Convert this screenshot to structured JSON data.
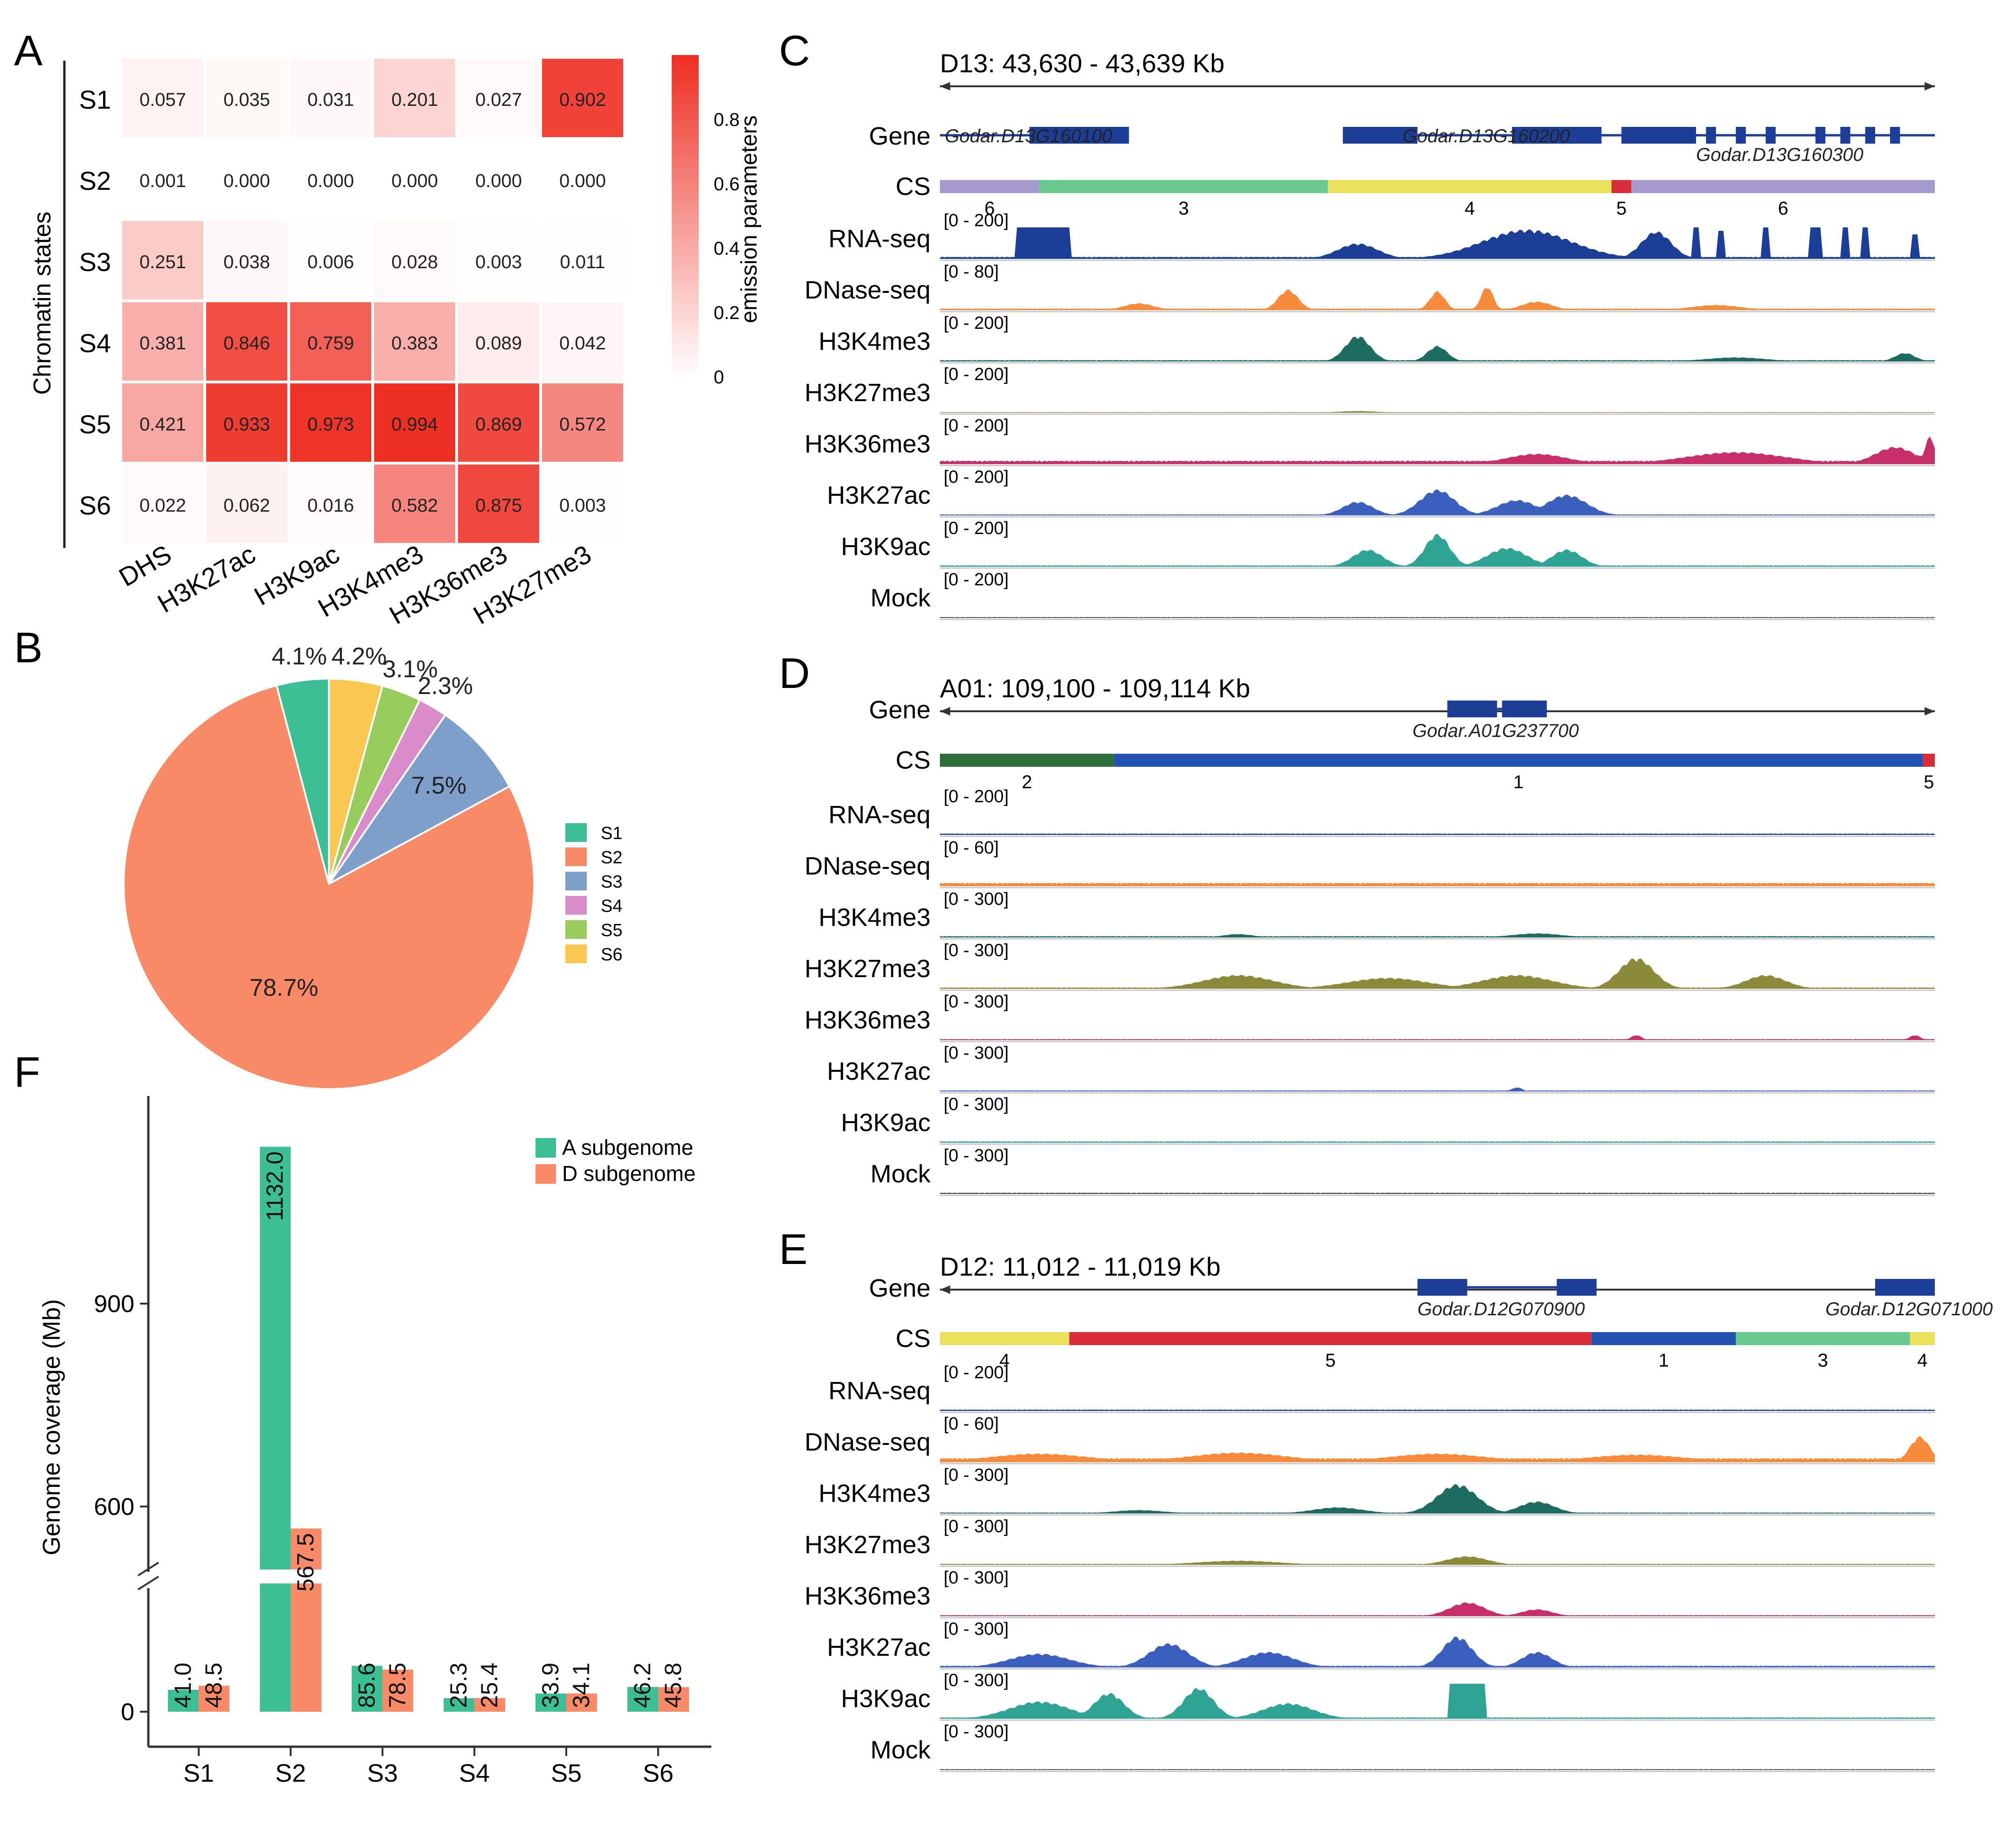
{
  "panel_letters": {
    "a": "A",
    "b": "B",
    "c": "C",
    "d": "D",
    "e": "E",
    "f": "F"
  },
  "chart_data": [
    {
      "panel": "A",
      "type": "heatmap",
      "ylabel": "Chromatin states",
      "rows": [
        "S1",
        "S2",
        "S3",
        "S4",
        "S5",
        "S6"
      ],
      "columns": [
        "DHS",
        "H3K27ac",
        "H3K9ac",
        "H3K4me3",
        "H3K36me3",
        "H3K27me3"
      ],
      "values": [
        [
          0.057,
          0.035,
          0.031,
          0.201,
          0.027,
          0.902
        ],
        [
          0.001,
          0.0,
          0.0,
          0.0,
          0.0,
          0.0
        ],
        [
          0.251,
          0.038,
          0.006,
          0.028,
          0.003,
          0.011
        ],
        [
          0.381,
          0.846,
          0.759,
          0.383,
          0.089,
          0.042
        ],
        [
          0.421,
          0.933,
          0.973,
          0.994,
          0.869,
          0.572
        ],
        [
          0.022,
          0.062,
          0.016,
          0.582,
          0.875,
          0.003
        ]
      ],
      "cell_labels": [
        [
          "0.057",
          "0.035",
          "0.031",
          "0.201",
          "0.027",
          "0.902"
        ],
        [
          "0.001",
          "0.000",
          "0.000",
          "0.000",
          "0.000",
          "0.000"
        ],
        [
          "0.251",
          "0.038",
          "0.006",
          "0.028",
          "0.003",
          "0.011"
        ],
        [
          "0.381",
          "0.846",
          "0.759",
          "0.383",
          "0.089",
          "0.042"
        ],
        [
          "0.421",
          "0.933",
          "0.973",
          "0.994",
          "0.869",
          "0.572"
        ],
        [
          "0.022",
          "0.062",
          "0.016",
          "0.582",
          "0.875",
          "0.003"
        ]
      ],
      "colorbar": {
        "title": "emission parameters",
        "range": [
          0,
          1
        ],
        "ticks": [
          "0",
          "0.2",
          "0.4",
          "0.6",
          "0.8"
        ],
        "low_color": "#ffffff",
        "high_color": "#ee2e22"
      }
    },
    {
      "panel": "B",
      "type": "pie",
      "labels": [
        "S1",
        "S2",
        "S3",
        "S4",
        "S5",
        "S6"
      ],
      "values": [
        4.1,
        78.7,
        7.5,
        2.3,
        3.1,
        4.2
      ],
      "value_labels": [
        "4.1%",
        "78.7%",
        "7.5%",
        "2.3%",
        "3.1%",
        "4.2%"
      ],
      "colors": [
        "#3dbf95",
        "#f98a68",
        "#7f9fcb",
        "#d98cc9",
        "#98cd5e",
        "#fac751"
      ],
      "legend_position": "right"
    },
    {
      "panel": "F",
      "type": "bar",
      "categories": [
        "S1",
        "S2",
        "S3",
        "S4",
        "S5",
        "S6"
      ],
      "series": [
        {
          "name": "A subgenome",
          "color": "#3dbf95",
          "values": [
            41.0,
            1132.0,
            85.6,
            25.3,
            33.9,
            46.2
          ],
          "labels": [
            "41.0",
            "1132.0",
            "85.6",
            "25.3",
            "33.9",
            "46.2"
          ]
        },
        {
          "name": "D subgenome",
          "color": "#f98a68",
          "values": [
            48.5,
            567.5,
            78.5,
            25.4,
            34.1,
            45.8
          ],
          "labels": [
            "48.5",
            "567.5",
            "78.5",
            "25.4",
            "34.1",
            "45.8"
          ]
        }
      ],
      "ylabel": "Genome coverage (Mb)",
      "yticks": [
        "0",
        "600",
        "900"
      ],
      "axis_break": true,
      "legend_position": "top-right"
    }
  ],
  "browser_panels": [
    {
      "panel": "C",
      "region": "D13: 43,630 - 43,639 Kb",
      "genes": [
        "Godar.D13G160100",
        "Godar.D13G160200",
        "Godar.D13G160300"
      ],
      "cs": {
        "segments": [
          {
            "state": "6",
            "color": "#a699cf",
            "start": 0,
            "end": 0.1
          },
          {
            "state": "3",
            "color": "#69c98e",
            "start": 0.1,
            "end": 0.39
          },
          {
            "state": "4",
            "color": "#ece15a",
            "start": 0.39,
            "end": 0.675
          },
          {
            "state": "5",
            "color": "#d92e3a",
            "start": 0.675,
            "end": 0.695
          },
          {
            "state": "6",
            "color": "#a699cf",
            "start": 0.695,
            "end": 1.0
          }
        ]
      },
      "tracks": [
        {
          "name": "RNA-seq",
          "range": "[0 - 200]",
          "color": "#1c3e96",
          "peaks": [
            [
              0.105,
              0.055,
              0.9,
              "s"
            ],
            [
              0.42,
              0.04,
              0.45,
              "g"
            ],
            [
              0.59,
              0.09,
              0.85,
              "g"
            ],
            [
              0.72,
              0.03,
              0.8,
              "g"
            ],
            [
              0.76,
              0.008,
              0.9,
              "s"
            ],
            [
              0.785,
              0.008,
              0.8,
              "s"
            ],
            [
              0.83,
              0.01,
              0.9,
              "s"
            ],
            [
              0.88,
              0.012,
              0.9,
              "s"
            ],
            [
              0.91,
              0.008,
              0.9,
              "s"
            ],
            [
              0.93,
              0.008,
              0.9,
              "s"
            ],
            [
              0.98,
              0.01,
              0.7,
              "s"
            ]
          ],
          "floor": 0.06
        },
        {
          "name": "DNase-seq",
          "range": "[0 - 80]",
          "color": "#f58b3b",
          "peaks": [
            [
              0.2,
              0.03,
              0.2,
              "g"
            ],
            [
              0.35,
              0.02,
              0.6,
              "g"
            ],
            [
              0.5,
              0.015,
              0.55,
              "g"
            ],
            [
              0.55,
              0.012,
              0.7,
              "g"
            ],
            [
              0.6,
              0.03,
              0.25,
              "g"
            ],
            [
              0.78,
              0.05,
              0.15,
              "g"
            ]
          ],
          "floor": 0.05
        },
        {
          "name": "H3K4me3",
          "range": "[0 - 200]",
          "color": "#1e6b5f",
          "peaks": [
            [
              0.42,
              0.025,
              0.75,
              "g"
            ],
            [
              0.5,
              0.02,
              0.45,
              "g"
            ],
            [
              0.8,
              0.06,
              0.12,
              "g"
            ],
            [
              0.97,
              0.02,
              0.25,
              "g"
            ]
          ],
          "floor": 0.04
        },
        {
          "name": "H3K27me3",
          "range": "[0 - 200]",
          "color": "#8a8a3a",
          "peaks": [
            [
              0.42,
              0.04,
              0.05,
              "g"
            ]
          ],
          "floor": 0.02
        },
        {
          "name": "H3K36me3",
          "range": "[0 - 200]",
          "color": "#c82e6a",
          "peaks": [
            [
              0.6,
              0.06,
              0.3,
              "g"
            ],
            [
              0.8,
              0.1,
              0.35,
              "g"
            ],
            [
              0.96,
              0.04,
              0.5,
              "g"
            ],
            [
              0.995,
              0.01,
              0.8,
              "g"
            ]
          ],
          "floor": 0.1
        },
        {
          "name": "H3K27ac",
          "range": "[0 - 200]",
          "color": "#3b5fbf",
          "peaks": [
            [
              0.42,
              0.03,
              0.4,
              "g"
            ],
            [
              0.5,
              0.035,
              0.75,
              "g"
            ],
            [
              0.58,
              0.04,
              0.45,
              "g"
            ],
            [
              0.63,
              0.04,
              0.6,
              "g"
            ]
          ],
          "floor": 0.03
        },
        {
          "name": "H3K9ac",
          "range": "[0 - 200]",
          "color": "#2fa394",
          "peaks": [
            [
              0.43,
              0.03,
              0.5,
              "g"
            ],
            [
              0.5,
              0.025,
              0.95,
              "g"
            ],
            [
              0.57,
              0.04,
              0.55,
              "g"
            ],
            [
              0.63,
              0.03,
              0.5,
              "g"
            ]
          ],
          "floor": 0.04
        },
        {
          "name": "Mock",
          "range": "[0 - 200]",
          "color": "#555555",
          "peaks": [],
          "floor": 0.03
        }
      ]
    },
    {
      "panel": "D",
      "region": "A01: 109,100 - 109,114 Kb",
      "genes": [
        "Godar.A01G237700"
      ],
      "cs": {
        "segments": [
          {
            "state": "2",
            "color": "#2f6e3b",
            "start": 0,
            "end": 0.175
          },
          {
            "state": "1",
            "color": "#2452b3",
            "start": 0.175,
            "end": 0.988
          },
          {
            "state": "5",
            "color": "#d92e3a",
            "start": 0.988,
            "end": 1.0
          }
        ]
      },
      "tracks": [
        {
          "name": "RNA-seq",
          "range": "[0 - 200]",
          "color": "#1c3e96",
          "peaks": [],
          "floor": 0.04
        },
        {
          "name": "DNase-seq",
          "range": "[0 - 60]",
          "color": "#f58b3b",
          "peaks": [],
          "floor": 0.1
        },
        {
          "name": "H3K4me3",
          "range": "[0 - 300]",
          "color": "#1e6b5f",
          "peaks": [
            [
              0.3,
              0.03,
              0.1,
              "g"
            ],
            [
              0.6,
              0.05,
              0.12,
              "g"
            ]
          ],
          "floor": 0.04
        },
        {
          "name": "H3K27me3",
          "range": "[0 - 300]",
          "color": "#8a8a3a",
          "peaks": [
            [
              0.3,
              0.07,
              0.4,
              "g"
            ],
            [
              0.45,
              0.08,
              0.32,
              "g"
            ],
            [
              0.58,
              0.07,
              0.4,
              "g"
            ],
            [
              0.7,
              0.035,
              0.9,
              "g"
            ],
            [
              0.83,
              0.04,
              0.4,
              "g"
            ]
          ],
          "floor": 0.04
        },
        {
          "name": "H3K36me3",
          "range": "[0 - 300]",
          "color": "#c82e6a",
          "peaks": [
            [
              0.7,
              0.01,
              0.15,
              "g"
            ],
            [
              0.98,
              0.01,
              0.15,
              "g"
            ]
          ],
          "floor": 0.03
        },
        {
          "name": "H3K27ac",
          "range": "[0 - 300]",
          "color": "#3b5fbf",
          "peaks": [
            [
              0.58,
              0.01,
              0.12,
              "g"
            ]
          ],
          "floor": 0.03
        },
        {
          "name": "H3K9ac",
          "range": "[0 - 300]",
          "color": "#2fa394",
          "peaks": [],
          "floor": 0.04
        },
        {
          "name": "Mock",
          "range": "[0 - 300]",
          "color": "#555555",
          "peaks": [],
          "floor": 0.04
        }
      ]
    },
    {
      "panel": "E",
      "region": "D12: 11,012 - 11,019 Kb",
      "genes": [
        "Godar.D12G070900",
        "Godar.D12G071000"
      ],
      "cs": {
        "segments": [
          {
            "state": "4",
            "color": "#ece15a",
            "start": 0,
            "end": 0.13
          },
          {
            "state": "5",
            "color": "#d92e3a",
            "start": 0.13,
            "end": 0.655
          },
          {
            "state": "1",
            "color": "#2452b3",
            "start": 0.655,
            "end": 0.8
          },
          {
            "state": "3",
            "color": "#69c98e",
            "start": 0.8,
            "end": 0.975
          },
          {
            "state": "4",
            "color": "#ece15a",
            "start": 0.975,
            "end": 1.0
          }
        ]
      },
      "tracks": [
        {
          "name": "RNA-seq",
          "range": "[0 - 200]",
          "color": "#1c3e96",
          "peaks": [],
          "floor": 0.04
        },
        {
          "name": "DNase-seq",
          "range": "[0 - 60]",
          "color": "#f58b3b",
          "peaks": [
            [
              0.1,
              0.1,
              0.25,
              "g"
            ],
            [
              0.3,
              0.1,
              0.28,
              "g"
            ],
            [
              0.5,
              0.1,
              0.25,
              "g"
            ],
            [
              0.7,
              0.1,
              0.22,
              "g"
            ],
            [
              0.985,
              0.02,
              0.75,
              "g"
            ]
          ],
          "floor": 0.12
        },
        {
          "name": "H3K4me3",
          "range": "[0 - 300]",
          "color": "#1e6b5f",
          "peaks": [
            [
              0.2,
              0.05,
              0.1,
              "g"
            ],
            [
              0.4,
              0.05,
              0.18,
              "g"
            ],
            [
              0.52,
              0.04,
              0.85,
              "g"
            ],
            [
              0.6,
              0.035,
              0.35,
              "g"
            ]
          ],
          "floor": 0.03
        },
        {
          "name": "H3K27me3",
          "range": "[0 - 300]",
          "color": "#8a8a3a",
          "peaks": [
            [
              0.3,
              0.08,
              0.12,
              "g"
            ],
            [
              0.53,
              0.04,
              0.25,
              "g"
            ]
          ],
          "floor": 0.03
        },
        {
          "name": "H3K36me3",
          "range": "[0 - 300]",
          "color": "#c82e6a",
          "peaks": [
            [
              0.53,
              0.035,
              0.4,
              "g"
            ],
            [
              0.6,
              0.03,
              0.2,
              "g"
            ]
          ],
          "floor": 0.03
        },
        {
          "name": "H3K27ac",
          "range": "[0 - 300]",
          "color": "#3b5fbf",
          "peaks": [
            [
              0.1,
              0.06,
              0.4,
              "g"
            ],
            [
              0.23,
              0.04,
              0.7,
              "g"
            ],
            [
              0.33,
              0.05,
              0.45,
              "g"
            ],
            [
              0.52,
              0.03,
              0.9,
              "g"
            ],
            [
              0.6,
              0.03,
              0.45,
              "g"
            ]
          ],
          "floor": 0.05
        },
        {
          "name": "H3K9ac",
          "range": "[0 - 300]",
          "color": "#2fa394",
          "peaks": [
            [
              0.1,
              0.06,
              0.5,
              "g"
            ],
            [
              0.17,
              0.03,
              0.75,
              "g"
            ],
            [
              0.26,
              0.03,
              0.9,
              "g"
            ],
            [
              0.35,
              0.05,
              0.45,
              "g"
            ],
            [
              0.53,
              0.04,
              1.0,
              "s"
            ]
          ],
          "floor": 0.04
        },
        {
          "name": "Mock",
          "range": "[0 - 300]",
          "color": "#555555",
          "peaks": [],
          "floor": 0.03
        }
      ]
    }
  ]
}
